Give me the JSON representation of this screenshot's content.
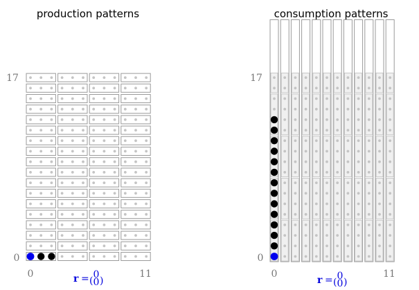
{
  "colors": {
    "grid": "#9a9a9a",
    "dot": "#c4c4c4",
    "filled": "#000000",
    "origin": "#0000ee",
    "label": "#777777",
    "vector": "#0000dd"
  },
  "panels": [
    {
      "title": "production patterns",
      "y_max_label": "17",
      "y_min_label": "0",
      "x_min_label": "0",
      "x_max_label": "11",
      "vector_label": "r",
      "vector_eq": "=",
      "vector_top": "0",
      "vector_bottom": "0",
      "rows": 18,
      "cols": 12,
      "block_size": 3,
      "block_orientation": "horizontal",
      "origin_point": [
        0,
        0
      ],
      "filled_points": [
        [
          1,
          0
        ],
        [
          2,
          0
        ]
      ]
    },
    {
      "title": "consumption patterns",
      "y_max_label": "17",
      "y_min_label": "0",
      "x_min_label": "0",
      "x_max_label": "11",
      "vector_label": "r",
      "vector_eq": "=",
      "vector_top": "0",
      "vector_bottom": "0",
      "rows": 18,
      "cols": 12,
      "extra_rows_top": 5,
      "block_size": 4,
      "block_orientation": "vertical",
      "origin_point": [
        0,
        0
      ],
      "filled_points": [
        [
          0,
          1
        ],
        [
          0,
          2
        ],
        [
          0,
          3
        ],
        [
          0,
          4
        ],
        [
          0,
          5
        ],
        [
          0,
          6
        ],
        [
          0,
          7
        ],
        [
          0,
          8
        ],
        [
          0,
          9
        ],
        [
          0,
          10
        ],
        [
          0,
          11
        ],
        [
          0,
          12
        ],
        [
          0,
          13
        ]
      ]
    }
  ]
}
